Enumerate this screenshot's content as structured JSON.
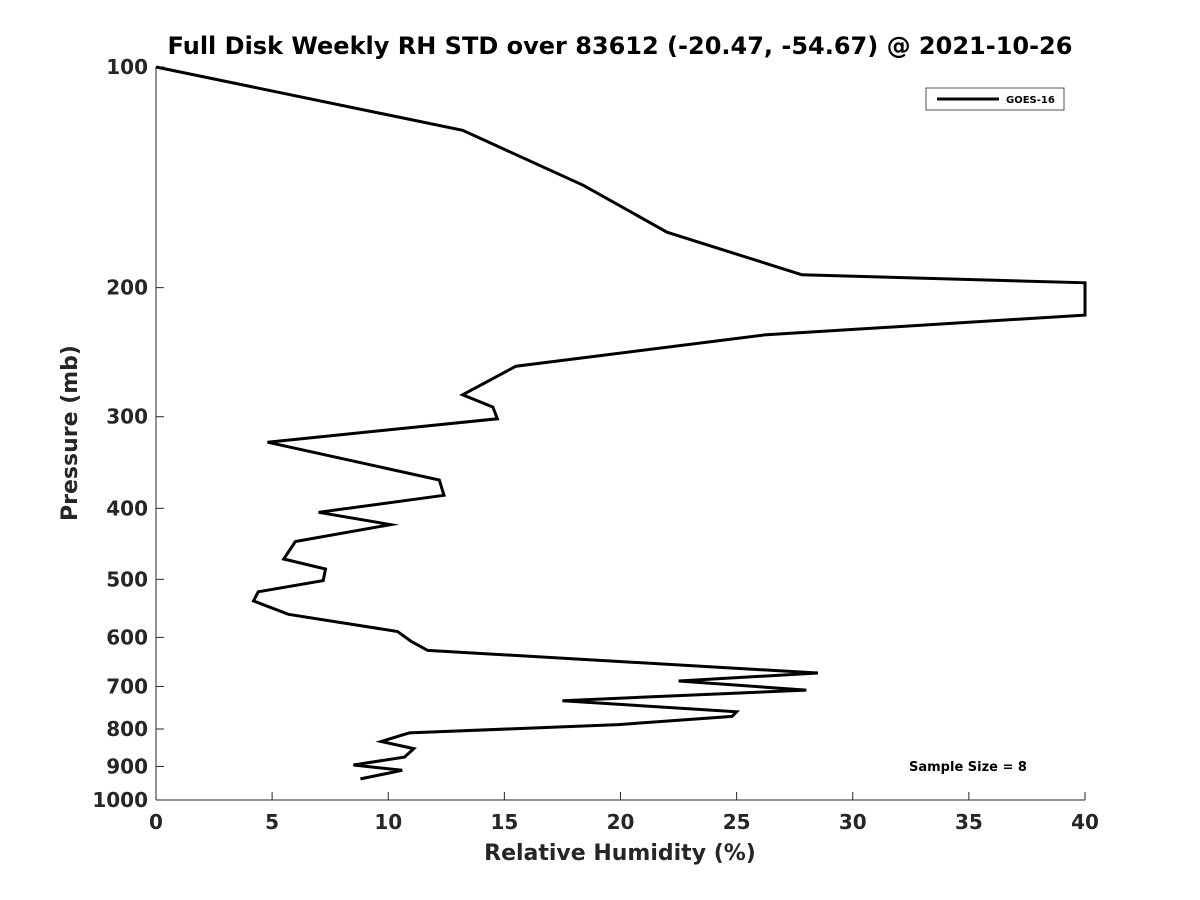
{
  "chart_data": {
    "type": "line",
    "title": "Full Disk Weekly RH STD over 83612 (-20.47, -54.67) @ 2021-10-26",
    "xlabel": "Relative Humidity (%)",
    "ylabel": "Pressure (mb)",
    "xlim": [
      0,
      40
    ],
    "ylim": [
      100,
      1000
    ],
    "yscale": "log",
    "y_reversed": true,
    "grid": false,
    "legend_position": "top-right",
    "xticks": [
      0,
      5,
      10,
      15,
      20,
      25,
      30,
      35,
      40
    ],
    "xtick_labels": [
      "0",
      "5",
      "10",
      "15",
      "20",
      "25",
      "30",
      "35",
      "40"
    ],
    "yticks": [
      100,
      200,
      300,
      400,
      500,
      600,
      700,
      800,
      900,
      1000
    ],
    "ytick_labels": [
      "100",
      "200",
      "300",
      "400",
      "500",
      "600",
      "700",
      "800",
      "900",
      "1000"
    ],
    "series": [
      {
        "name": "GOES-16",
        "color": "#000000",
        "x": [
          0,
          13.2,
          18.4,
          22.0,
          27.8,
          40,
          40,
          26.2,
          15.5,
          13.2,
          14.5,
          14.7,
          4.8,
          12.2,
          12.4,
          7.0,
          10.1,
          6.0,
          5.5,
          7.3,
          7.2,
          4.4,
          4.2,
          5.7,
          10.4,
          11.0,
          11.7,
          28.5,
          22.5,
          28.0,
          17.5,
          25.0,
          24.8,
          19.9,
          10.9,
          9.7,
          11.1,
          10.7,
          8.5,
          10.6,
          8.8
        ],
        "y": [
          100,
          122,
          145,
          168,
          192,
          197,
          218,
          232,
          256,
          280,
          291,
          302,
          325,
          366,
          384,
          405,
          421,
          444,
          469,
          484,
          502,
          520,
          535,
          558,
          589,
          608,
          625,
          671,
          688,
          708,
          732,
          758,
          769,
          789,
          810,
          832,
          851,
          874,
          896,
          911,
          936
        ]
      }
    ],
    "annotations": [
      "Sample Size = 8"
    ]
  }
}
